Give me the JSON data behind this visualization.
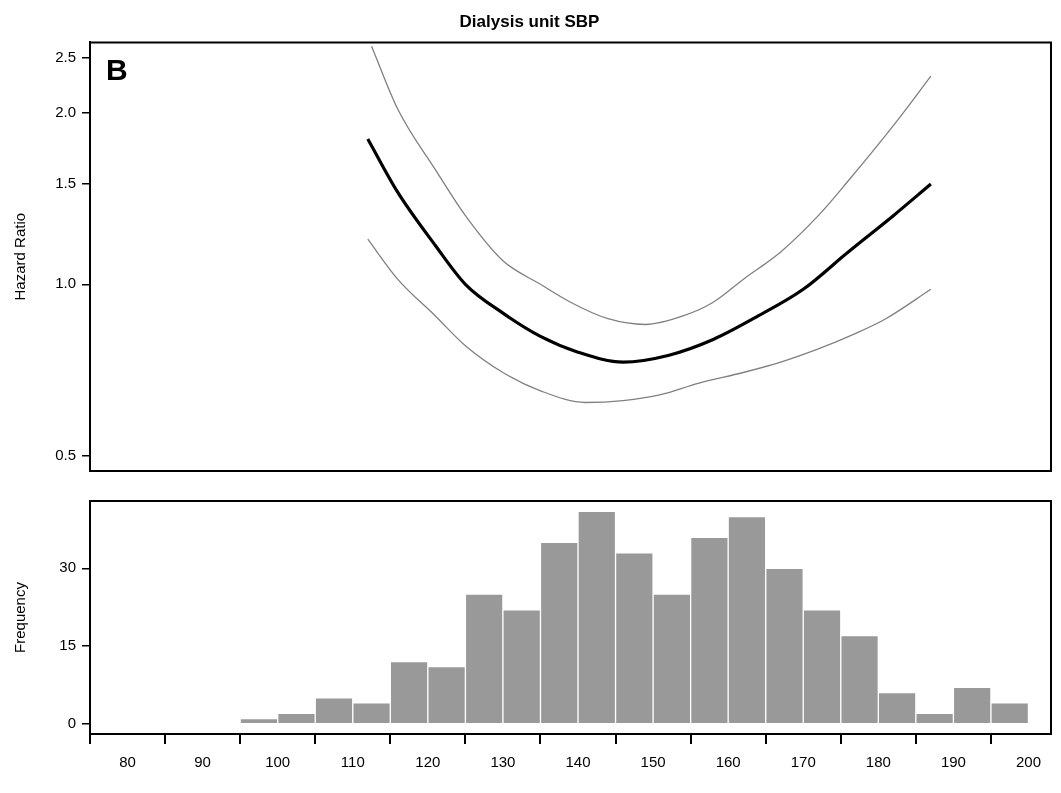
{
  "chart_data": [
    {
      "type": "line",
      "title": "Dialysis unit SBP",
      "ylabel": "Hazard Ratio",
      "annotations": [
        "B"
      ],
      "log": "y",
      "tick_labels": "y",
      "xlim": [
        75,
        203
      ],
      "ylim": [
        0.47,
        2.66
      ],
      "yticks": [
        {
          "value": 0.5,
          "label": "0.5"
        },
        {
          "value": 1,
          "label": "1.0"
        },
        {
          "value": 1.5,
          "label": "1.5"
        },
        {
          "value": 2,
          "label": "2.0"
        },
        {
          "value": 2.5,
          "label": "2.5"
        }
      ],
      "series": [
        {
          "color": "#000000",
          "x": [
            112,
            116,
            121,
            125,
            130,
            135,
            140,
            146,
            152,
            158,
            164,
            170,
            176,
            182,
            187
          ],
          "values": [
            1.8,
            1.45,
            1.17,
            1.0,
            0.89,
            0.81,
            0.76,
            0.73,
            0.75,
            0.8,
            0.88,
            0.98,
            1.14,
            1.32,
            1.5
          ]
        },
        {
          "color": "#808080",
          "x": [
            112.5,
            116,
            121,
            125,
            130,
            135,
            139,
            144,
            149,
            154,
            158,
            162,
            167,
            172,
            176,
            182,
            187
          ],
          "values": [
            2.62,
            2.03,
            1.59,
            1.32,
            1.1,
            1.0,
            0.93,
            0.87,
            0.85,
            0.88,
            0.93,
            1.02,
            1.14,
            1.32,
            1.52,
            1.9,
            2.32
          ]
        },
        {
          "color": "#808080",
          "x": [
            112,
            116,
            121,
            125,
            130,
            135,
            141,
            146,
            151,
            156,
            162,
            167,
            172,
            177,
            181,
            187
          ],
          "values": [
            1.2,
            1.02,
            0.88,
            0.78,
            0.7,
            0.65,
            0.62,
            0.625,
            0.64,
            0.67,
            0.7,
            0.73,
            0.77,
            0.82,
            0.87,
            0.98
          ]
        }
      ]
    },
    {
      "type": "histogram",
      "ylabel": "Frequency",
      "color": "#999999",
      "xlim": [
        75,
        203
      ],
      "ylim": [
        -2,
        43
      ],
      "xticks": [
        80,
        90,
        100,
        110,
        120,
        130,
        140,
        150,
        160,
        170,
        180,
        190,
        200
      ],
      "yticks": [
        0,
        15,
        30
      ],
      "bins": [
        95,
        100,
        105,
        110,
        115,
        120,
        125,
        130,
        135,
        140,
        145,
        150,
        155,
        160,
        165,
        170,
        175,
        180,
        185,
        190,
        195,
        200
      ],
      "values": [
        1,
        2,
        5,
        4,
        12,
        11,
        25,
        22,
        35,
        41,
        33,
        25,
        36,
        40,
        30,
        22,
        17,
        6,
        2,
        7,
        4
      ]
    }
  ]
}
